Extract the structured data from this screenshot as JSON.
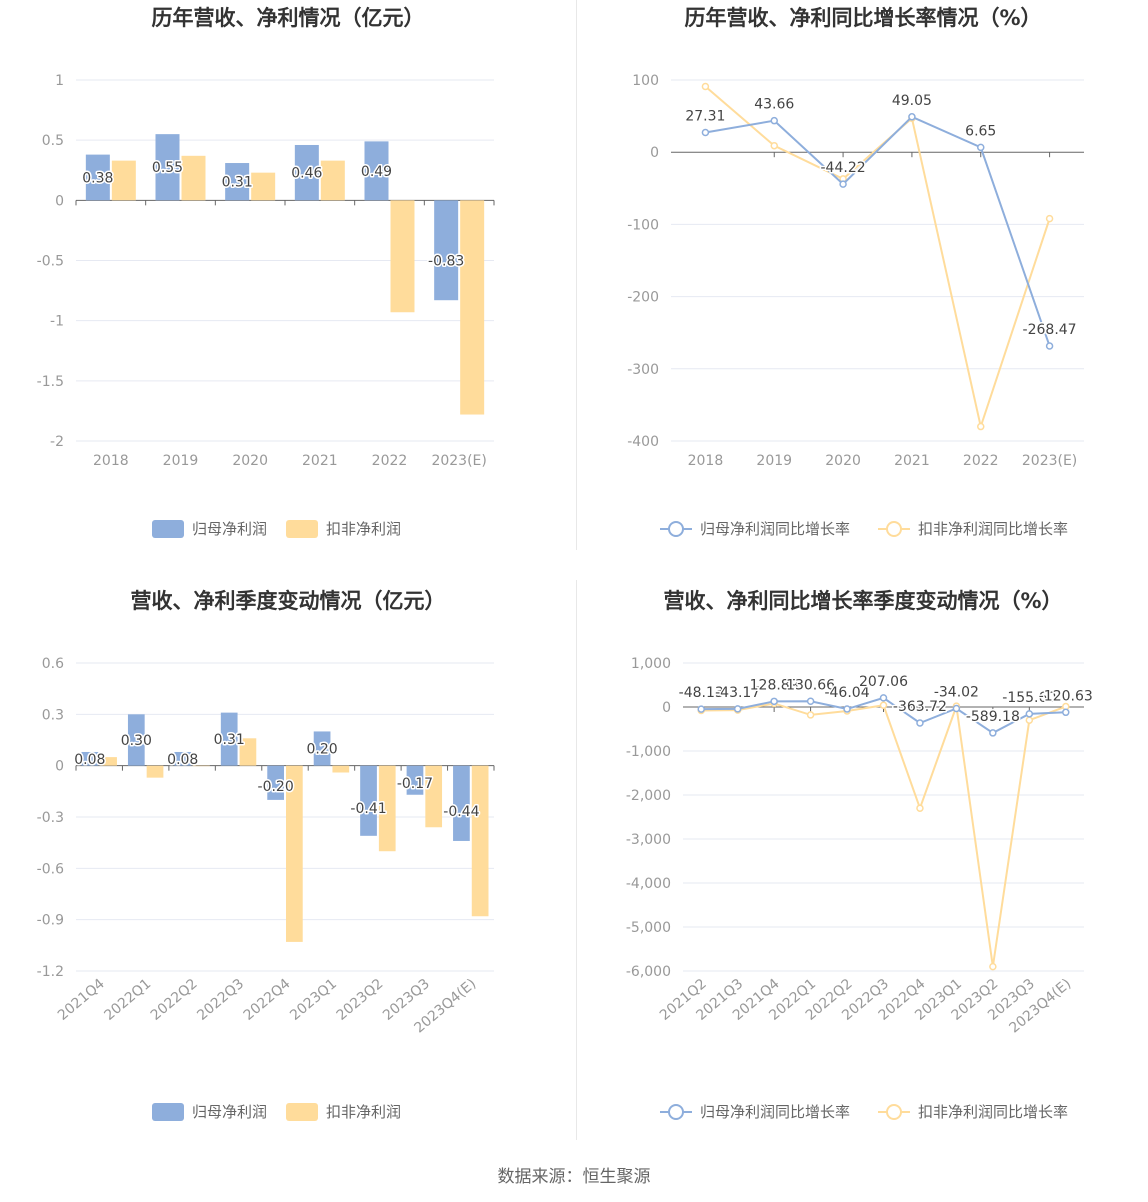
{
  "source": "数据来源：恒生聚源",
  "colors": {
    "blue": "#8eaedc",
    "orange": "#ffdc9b",
    "grid": "#e6e9f2",
    "axis": "#666666"
  },
  "chart_data": [
    {
      "type": "bar",
      "title": "历年营收、净利情况（亿元）",
      "categories": [
        "2018",
        "2019",
        "2020",
        "2021",
        "2022",
        "2023(E)"
      ],
      "ylim": [
        -2,
        1
      ],
      "yticks": [
        1,
        0.5,
        0,
        -0.5,
        -1,
        -1.5,
        -2
      ],
      "ytick_labels": [
        "1",
        "0.5",
        "0",
        "-0.5",
        "-1",
        "-1.5",
        "-2"
      ],
      "series": [
        {
          "name": "归母净利润",
          "values": [
            0.38,
            0.55,
            0.31,
            0.46,
            0.49,
            -0.83
          ],
          "labels": [
            "0.38",
            "0.55",
            "0.31",
            "0.46",
            "0.49",
            "-0.83"
          ]
        },
        {
          "name": "扣非净利润",
          "values": [
            0.33,
            0.37,
            0.23,
            0.33,
            -0.93,
            -1.78
          ]
        }
      ],
      "legend_position": "bottom"
    },
    {
      "type": "line",
      "title": "历年营收、净利同比增长率情况（%）",
      "categories": [
        "2018",
        "2019",
        "2020",
        "2021",
        "2022",
        "2023(E)"
      ],
      "ylim": [
        -400,
        100
      ],
      "yticks": [
        100,
        0,
        -100,
        -200,
        -300,
        -400
      ],
      "ytick_labels": [
        "100",
        "0",
        "-100",
        "-200",
        "-300",
        "-400"
      ],
      "series": [
        {
          "name": "归母净利润同比增长率",
          "values": [
            27.31,
            43.66,
            -44.22,
            49.05,
            6.65,
            -268.47
          ],
          "labels": [
            "27.31",
            "43.66",
            "-44.22",
            "49.05",
            "6.65",
            "-268.47"
          ]
        },
        {
          "name": "扣非净利润同比增长率",
          "values": [
            91,
            9,
            -37,
            47,
            -380,
            -92
          ]
        }
      ],
      "legend_position": "bottom"
    },
    {
      "type": "bar",
      "title": "营收、净利季度变动情况（亿元）",
      "categories": [
        "2021Q4",
        "2022Q1",
        "2022Q2",
        "2022Q3",
        "2022Q4",
        "2023Q1",
        "2023Q2",
        "2023Q3",
        "2023Q4(E)"
      ],
      "ylim": [
        -1.2,
        0.6
      ],
      "yticks": [
        0.6,
        0.3,
        0,
        -0.3,
        -0.6,
        -0.9,
        -1.2
      ],
      "ytick_labels": [
        "0.6",
        "0.3",
        "0",
        "-0.3",
        "-0.6",
        "-0.9",
        "-1.2"
      ],
      "series": [
        {
          "name": "归母净利润",
          "values": [
            0.08,
            0.3,
            0.08,
            0.31,
            -0.2,
            0.2,
            -0.41,
            -0.17,
            -0.44
          ],
          "labels": [
            "0.08",
            "0.30",
            "0.08",
            "0.31",
            "-0.20",
            "0.20",
            "-0.41",
            "-0.17",
            "-0.44"
          ]
        },
        {
          "name": "扣非净利润",
          "values": [
            0.05,
            -0.07,
            0.0,
            0.16,
            -1.03,
            -0.04,
            -0.5,
            -0.36,
            -0.88
          ]
        }
      ],
      "legend_position": "bottom"
    },
    {
      "type": "line",
      "title": "营收、净利同比增长率季度变动情况（%）",
      "categories": [
        "2021Q2",
        "2021Q3",
        "2021Q4",
        "2022Q1",
        "2022Q2",
        "2022Q3",
        "2022Q4",
        "2023Q1",
        "2023Q2",
        "2023Q3",
        "2023Q4(E)"
      ],
      "ylim": [
        -6000,
        1000
      ],
      "yticks": [
        1000,
        0,
        -1000,
        -2000,
        -3000,
        -4000,
        -5000,
        -6000
      ],
      "ytick_labels": [
        "1,000",
        "0",
        "-1,000",
        "-2,000",
        "-3,000",
        "-4,000",
        "-5,000",
        "-6,000"
      ],
      "series": [
        {
          "name": "归母净利润同比增长率",
          "values": [
            -48.13,
            -43.17,
            128.89,
            130.66,
            -46.04,
            207.06,
            -363.72,
            -34.02,
            -589.18,
            -155.6,
            -120.63
          ],
          "labels": [
            "-48.13",
            "-43.17",
            "128.89",
            "130.66",
            "-46.04",
            "207.06",
            "-363.72",
            "-34.02",
            "-589.18",
            "-155.60",
            "-120.63"
          ]
        },
        {
          "name": "扣非净利润同比增长率",
          "values": [
            -80,
            -70,
            80,
            -180,
            -90,
            40,
            -2300,
            20,
            -5900,
            -300,
            10
          ]
        }
      ],
      "legend_position": "bottom"
    }
  ]
}
